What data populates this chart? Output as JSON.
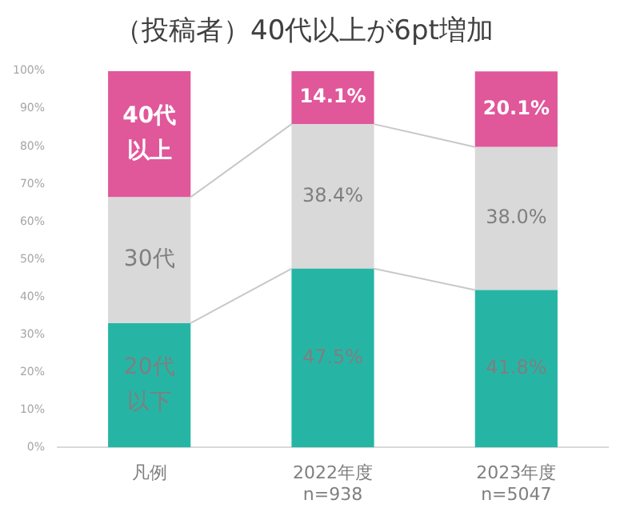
{
  "chart_data": {
    "type": "bar",
    "title": "（投稿者）40代以上が6pt増加",
    "stacked": true,
    "categories": [
      "凡例",
      "2022年度\nn=938",
      "2023年度\nn=5047"
    ],
    "series": [
      {
        "name": "20代以下",
        "color": "#26b5a5",
        "values": [
          33,
          47.5,
          41.8
        ],
        "value_labels": [
          null,
          "47.5%",
          "41.8%"
        ]
      },
      {
        "name": "30代",
        "color": "#d9d9d9",
        "values": [
          33.5,
          38.4,
          38.0
        ],
        "value_labels": [
          null,
          "38.4%",
          "38.0%"
        ]
      },
      {
        "name": "40代以上",
        "color": "#e0579a",
        "values": [
          33.5,
          14.1,
          20.1
        ],
        "value_labels": [
          null,
          "14.1%",
          "20.1%"
        ]
      }
    ],
    "ylim": [
      0,
      100
    ],
    "yticks": [
      {
        "value": 0,
        "label": "0%"
      },
      {
        "value": 10,
        "label": "10%"
      },
      {
        "value": 20,
        "label": "20%"
      },
      {
        "value": 30,
        "label": "30%"
      },
      {
        "value": 40,
        "label": "40%"
      },
      {
        "value": 50,
        "label": "50%"
      },
      {
        "value": 60,
        "label": "60%"
      },
      {
        "value": 70,
        "label": "70%"
      },
      {
        "value": 80,
        "label": "80%"
      },
      {
        "value": 90,
        "label": "90%"
      },
      {
        "value": 100,
        "label": "100%"
      }
    ],
    "grid": false,
    "legend": false
  }
}
